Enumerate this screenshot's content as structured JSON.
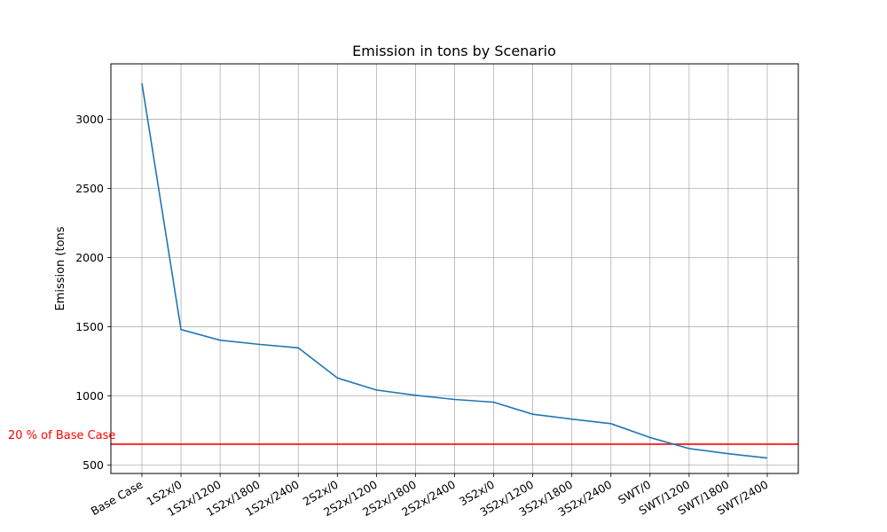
{
  "chart_data": {
    "type": "line",
    "title": "Emission in tons by Scenario",
    "ylabel": "Emission (tons",
    "xlabel": "",
    "categories": [
      "Base Case",
      "1S2x/0",
      "1S2x/1200",
      "1S2x/1800",
      "1S2x/2400",
      "2S2x/0",
      "2S2x/1200",
      "2S2x/1800",
      "2S2x/2400",
      "3S2x/0",
      "3S2x/1200",
      "3S2x/1800",
      "3S2x/2400",
      "SWT/0",
      "SWT/1200",
      "SWT/1800",
      "SWT/2400"
    ],
    "series": [
      {
        "values": [
          3260,
          1480,
          1403,
          1373,
          1348,
          1130,
          1043,
          1005,
          975,
          955,
          868,
          833,
          800,
          700,
          620,
          583,
          552
        ],
        "color": "#1f77b4"
      }
    ],
    "reference_line": {
      "value": 652,
      "label": "20 % of Base Case",
      "color": "#ff0000"
    },
    "ylim": [
      440,
      3400
    ],
    "yticks": [
      500,
      1000,
      1500,
      2000,
      2500,
      3000
    ],
    "grid": true
  }
}
